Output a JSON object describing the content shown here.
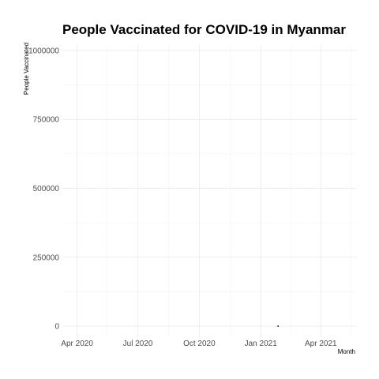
{
  "chart_data": {
    "type": "scatter",
    "title": "People Vaccinated for COVID-19 in Myanmar",
    "xlabel": "Month",
    "ylabel": "People Vaccinated",
    "x_ticks": [
      "Apr 2020",
      "Jul 2020",
      "Oct 2020",
      "Jan 2021",
      "Apr 2021"
    ],
    "y_ticks": [
      "0",
      "250000",
      "500000",
      "750000",
      "1000000"
    ],
    "x_range": [
      "2020-03-10",
      "2021-05-25"
    ],
    "ylim": [
      -40000,
      1020000
    ],
    "grid": true,
    "x": [
      "2021-01-27"
    ],
    "y": [
      0
    ],
    "colors": {
      "point": "#000000",
      "grid": "#ebebeb",
      "tick_text": "#4d4d4d"
    }
  }
}
